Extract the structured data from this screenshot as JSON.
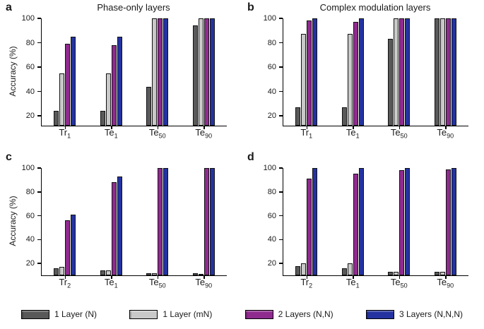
{
  "figure": {
    "legend": [
      {
        "label": "1 Layer (N)",
        "color": "#595959",
        "icon": "bar-swatch-dark-gray"
      },
      {
        "label": "1 Layer (mN)",
        "color": "#c9c9c9",
        "icon": "bar-swatch-light-gray"
      },
      {
        "label": "2 Layers (N,N)",
        "color": "#8f2b8f",
        "icon": "bar-swatch-purple"
      },
      {
        "label": "3 Layers (N,N,N)",
        "color": "#2433a0",
        "icon": "bar-swatch-blue"
      }
    ]
  },
  "chart_data": [
    {
      "panel_label": "a",
      "type": "bar",
      "title": "Phase-only layers",
      "xlabel": "",
      "ylabel": "Accuracy (%)",
      "ylim": [
        12,
        100
      ],
      "yticks": [
        20,
        40,
        60,
        80,
        100
      ],
      "grid": false,
      "legend_position": "bottom-shared",
      "categories": [
        {
          "t": "Tr",
          "s": "1"
        },
        {
          "t": "Te",
          "s": "1"
        },
        {
          "t": "Te",
          "s": "50"
        },
        {
          "t": "Te",
          "s": "90"
        }
      ],
      "series": [
        {
          "name": "1 Layer (N)",
          "color": "#595959",
          "values": [
            24,
            24,
            44,
            94
          ]
        },
        {
          "name": "1 Layer (mN)",
          "color": "#c9c9c9",
          "values": [
            55,
            55,
            100,
            100
          ]
        },
        {
          "name": "2 Layers (N,N)",
          "color": "#8f2b8f",
          "values": [
            79,
            78,
            100,
            100
          ]
        },
        {
          "name": "3 Layers (N,N,N)",
          "color": "#2433a0",
          "values": [
            85,
            85,
            100,
            100
          ]
        }
      ]
    },
    {
      "panel_label": "b",
      "type": "bar",
      "title": "Complex modulation layers",
      "xlabel": "",
      "ylabel": "",
      "ylim": [
        12,
        100
      ],
      "yticks": [
        20,
        40,
        60,
        80,
        100
      ],
      "grid": false,
      "legend_position": "bottom-shared",
      "categories": [
        {
          "t": "Tr",
          "s": "1"
        },
        {
          "t": "Te",
          "s": "1"
        },
        {
          "t": "Te",
          "s": "50"
        },
        {
          "t": "Te",
          "s": "90"
        }
      ],
      "series": [
        {
          "name": "1 Layer (N)",
          "color": "#595959",
          "values": [
            27,
            27,
            83,
            100
          ]
        },
        {
          "name": "1 Layer (mN)",
          "color": "#c9c9c9",
          "values": [
            87,
            87,
            100,
            100
          ]
        },
        {
          "name": "2 Layers (N,N)",
          "color": "#8f2b8f",
          "values": [
            98,
            97,
            100,
            100
          ]
        },
        {
          "name": "3 Layers (N,N,N)",
          "color": "#2433a0",
          "values": [
            100,
            100,
            100,
            100
          ]
        }
      ]
    },
    {
      "panel_label": "c",
      "type": "bar",
      "title": "",
      "xlabel": "",
      "ylabel": "Accuracy (%)",
      "ylim": [
        10,
        100
      ],
      "yticks": [
        20,
        40,
        60,
        80,
        100
      ],
      "grid": false,
      "legend_position": "bottom-shared",
      "categories": [
        {
          "t": "Tr",
          "s": "2"
        },
        {
          "t": "Te",
          "s": "1"
        },
        {
          "t": "Te",
          "s": "50"
        },
        {
          "t": "Te",
          "s": "90"
        }
      ],
      "series": [
        {
          "name": "1 Layer (N)",
          "color": "#595959",
          "values": [
            16,
            14,
            12,
            12
          ]
        },
        {
          "name": "1 Layer (mN)",
          "color": "#c9c9c9",
          "values": [
            17,
            14,
            12,
            11
          ]
        },
        {
          "name": "2 Layers (N,N)",
          "color": "#8f2b8f",
          "values": [
            56,
            88,
            100,
            100
          ]
        },
        {
          "name": "3 Layers (N,N,N)",
          "color": "#2433a0",
          "values": [
            61,
            93,
            100,
            100
          ]
        }
      ]
    },
    {
      "panel_label": "d",
      "type": "bar",
      "title": "",
      "xlabel": "",
      "ylabel": "",
      "ylim": [
        10,
        100
      ],
      "yticks": [
        20,
        40,
        60,
        80,
        100
      ],
      "grid": false,
      "legend_position": "bottom-shared",
      "categories": [
        {
          "t": "Tr",
          "s": "2"
        },
        {
          "t": "Te",
          "s": "1"
        },
        {
          "t": "Te",
          "s": "50"
        },
        {
          "t": "Te",
          "s": "90"
        }
      ],
      "series": [
        {
          "name": "1 Layer (N)",
          "color": "#595959",
          "values": [
            18,
            16,
            13,
            13
          ]
        },
        {
          "name": "1 Layer (mN)",
          "color": "#c9c9c9",
          "values": [
            20,
            20,
            13,
            13
          ]
        },
        {
          "name": "2 Layers (N,N)",
          "color": "#8f2b8f",
          "values": [
            91,
            95,
            98,
            99
          ]
        },
        {
          "name": "3 Layers (N,N,N)",
          "color": "#2433a0",
          "values": [
            100,
            100,
            100,
            100
          ]
        }
      ]
    }
  ]
}
